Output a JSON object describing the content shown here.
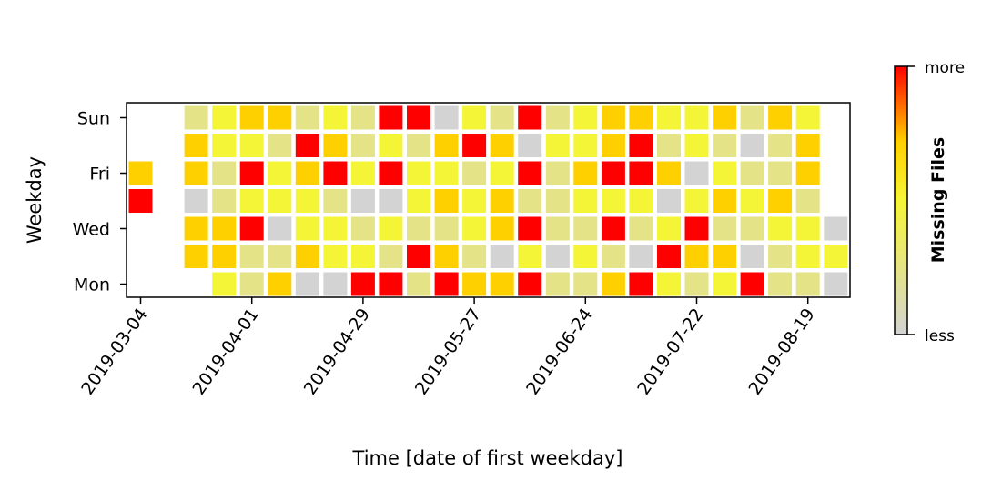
{
  "chart_data": {
    "type": "heatmap",
    "title": "",
    "xlabel": "Time [date of first weekday]",
    "ylabel": "Weekday",
    "x_tick_labels": [
      "2019-03-04",
      "2019-04-01",
      "2019-04-29",
      "2019-05-27",
      "2019-06-24",
      "2019-07-22",
      "2019-08-19"
    ],
    "x_tick_columns": [
      0,
      4,
      8,
      12,
      16,
      20,
      24
    ],
    "y_tick_labels": [
      "Mon",
      "Wed",
      "Fri",
      "Sun"
    ],
    "y_tick_rows": [
      0,
      2,
      4,
      6
    ],
    "colorbar": {
      "label": "Missing Files",
      "min_label": "less",
      "max_label": "more",
      "colors": [
        "#d3d3d3",
        "#e4e388",
        "#f5f537",
        "#ffd000",
        "#ff0000"
      ]
    },
    "legend": "none",
    "level_meaning": "0 = no data, 1 = grey (least missing) ... 5 = red (most missing)",
    "weeks": 26,
    "rows_order": [
      "Mon",
      "Tue",
      "Wed",
      "Thu",
      "Fri",
      "Sat",
      "Sun"
    ],
    "grid": [
      [
        0,
        0,
        0,
        3,
        2,
        4,
        1,
        1,
        5,
        5,
        2,
        5,
        4,
        4,
        5,
        2,
        2,
        4,
        5,
        3,
        2,
        3,
        5,
        2,
        2,
        1
      ],
      [
        0,
        0,
        4,
        4,
        2,
        2,
        4,
        3,
        3,
        2,
        5,
        4,
        2,
        1,
        3,
        1,
        3,
        2,
        1,
        5,
        4,
        4,
        1,
        2,
        3,
        3
      ],
      [
        0,
        0,
        4,
        4,
        5,
        1,
        3,
        3,
        2,
        3,
        2,
        2,
        3,
        4,
        5,
        2,
        2,
        5,
        2,
        3,
        5,
        2,
        2,
        3,
        3,
        1
      ],
      [
        5,
        0,
        1,
        2,
        3,
        3,
        3,
        2,
        1,
        1,
        3,
        4,
        3,
        4,
        2,
        2,
        3,
        3,
        3,
        1,
        3,
        4,
        3,
        4,
        2,
        0
      ],
      [
        4,
        0,
        4,
        2,
        5,
        3,
        4,
        5,
        3,
        5,
        3,
        3,
        2,
        3,
        5,
        2,
        4,
        5,
        5,
        4,
        1,
        3,
        2,
        2,
        4,
        0
      ],
      [
        0,
        0,
        4,
        3,
        3,
        2,
        5,
        4,
        2,
        3,
        2,
        4,
        5,
        4,
        1,
        3,
        3,
        4,
        5,
        2,
        3,
        2,
        1,
        2,
        4,
        0
      ],
      [
        0,
        0,
        2,
        3,
        4,
        4,
        2,
        3,
        2,
        5,
        5,
        1,
        3,
        2,
        5,
        2,
        3,
        4,
        4,
        3,
        3,
        4,
        2,
        4,
        3,
        0
      ]
    ]
  }
}
